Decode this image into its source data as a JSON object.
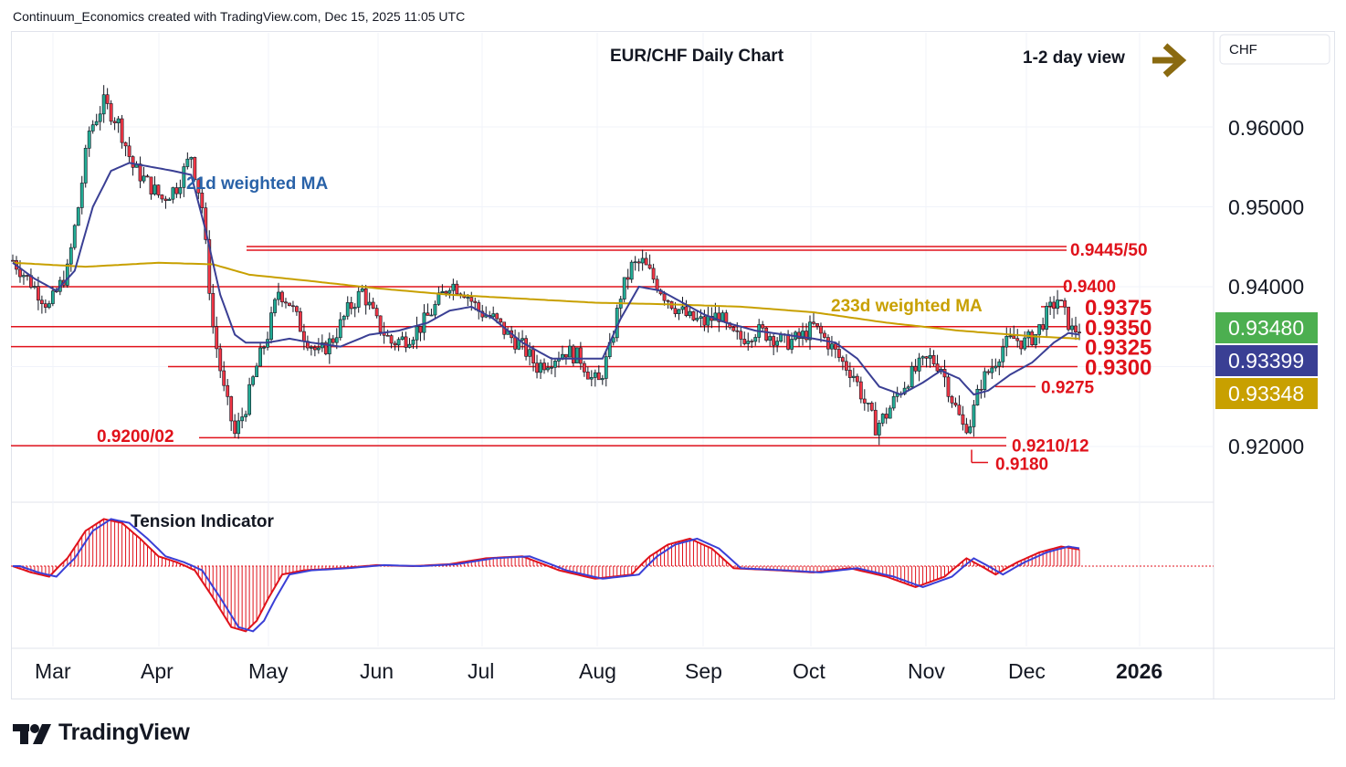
{
  "header": {
    "attribution": "Continuum_Economics created with TradingView.com, Dec 15, 2025 11:05 UTC"
  },
  "chart_data": {
    "type": "candlestick",
    "title": "EUR/CHF Daily Chart",
    "view": "1-2 day view",
    "currency": "CHF",
    "price_axis": {
      "ticks": [
        "0.96000",
        "0.95000",
        "0.94000",
        "0.92000"
      ],
      "range": [
        0.9145,
        0.9665
      ]
    },
    "time_axis": {
      "labels": [
        "Mar",
        "Apr",
        "May",
        "Jun",
        "Jul",
        "Aug",
        "Sep",
        "Oct",
        "Nov",
        "Dec",
        "2026"
      ]
    },
    "price_badges": [
      {
        "value": "0.93480",
        "color": "#4caf50",
        "desc": "last price"
      },
      {
        "value": "0.93399",
        "color": "#3a3f94",
        "desc": "21d weighted MA"
      },
      {
        "value": "0.93348",
        "color": "#c8a000",
        "desc": "233d weighted MA"
      }
    ],
    "levels": [
      {
        "label": "0.9445/50",
        "value": 0.9448
      },
      {
        "label": "0.9400",
        "value": 0.94
      },
      {
        "label": "0.9375",
        "value": 0.9375
      },
      {
        "label": "0.9350",
        "value": 0.935
      },
      {
        "label": "0.9325",
        "value": 0.9325
      },
      {
        "label": "0.9300",
        "value": 0.93
      },
      {
        "label": "0.9275",
        "value": 0.9275
      },
      {
        "label": "0.9210/12",
        "value": 0.9211
      },
      {
        "label": "0.9200/02",
        "value": 0.9201
      },
      {
        "label": "0.9180",
        "value": 0.918
      }
    ],
    "indicator_labels": {
      "ma21": "21d weighted MA",
      "ma233": "233d weighted MA",
      "tension": "Tension Indicator"
    },
    "colors": {
      "up": "#22ab94",
      "down": "#f23645",
      "ma21": "#3a3f94",
      "ma233": "#c8a000",
      "levels": "#e0121b",
      "arrow": "#8a6a10"
    },
    "price_path": [
      [
        0,
        0.9433
      ],
      [
        5,
        0.9405
      ],
      [
        10,
        0.9375
      ],
      [
        15,
        0.942
      ],
      [
        18,
        0.95
      ],
      [
        21,
        0.9595
      ],
      [
        25,
        0.963
      ],
      [
        29,
        0.9605
      ],
      [
        33,
        0.955
      ],
      [
        37,
        0.953
      ],
      [
        41,
        0.951
      ],
      [
        45,
        0.9525
      ],
      [
        49,
        0.9565
      ],
      [
        52,
        0.95
      ],
      [
        55,
        0.935
      ],
      [
        58,
        0.927
      ],
      [
        61,
        0.9215
      ],
      [
        64,
        0.925
      ],
      [
        67,
        0.93
      ],
      [
        70,
        0.934
      ],
      [
        73,
        0.9395
      ],
      [
        76,
        0.938
      ],
      [
        80,
        0.934
      ],
      [
        84,
        0.9315
      ],
      [
        88,
        0.9335
      ],
      [
        92,
        0.937
      ],
      [
        96,
        0.9395
      ],
      [
        100,
        0.9355
      ],
      [
        104,
        0.933
      ],
      [
        108,
        0.9335
      ],
      [
        112,
        0.935
      ],
      [
        116,
        0.9375
      ],
      [
        120,
        0.9405
      ],
      [
        124,
        0.9395
      ],
      [
        128,
        0.937
      ],
      [
        132,
        0.936
      ],
      [
        136,
        0.934
      ],
      [
        140,
        0.9325
      ],
      [
        144,
        0.93
      ],
      [
        148,
        0.931
      ],
      [
        152,
        0.932
      ],
      [
        156,
        0.931
      ],
      [
        159,
        0.9285
      ],
      [
        161,
        0.928
      ],
      [
        164,
        0.932
      ],
      [
        167,
        0.939
      ],
      [
        170,
        0.9425
      ],
      [
        173,
        0.943
      ],
      [
        176,
        0.941
      ],
      [
        179,
        0.939
      ],
      [
        182,
        0.9375
      ],
      [
        186,
        0.936
      ],
      [
        190,
        0.9355
      ],
      [
        194,
        0.9365
      ],
      [
        197,
        0.934
      ],
      [
        200,
        0.9335
      ],
      [
        204,
        0.9345
      ],
      [
        208,
        0.934
      ],
      [
        212,
        0.933
      ],
      [
        216,
        0.9335
      ],
      [
        220,
        0.935
      ],
      [
        224,
        0.933
      ],
      [
        228,
        0.9305
      ],
      [
        231,
        0.929
      ],
      [
        234,
        0.9255
      ],
      [
        237,
        0.9225
      ],
      [
        240,
        0.924
      ],
      [
        243,
        0.9265
      ],
      [
        246,
        0.9285
      ],
      [
        249,
        0.93
      ],
      [
        252,
        0.931
      ],
      [
        255,
        0.93
      ],
      [
        258,
        0.926
      ],
      [
        261,
        0.9225
      ],
      [
        263,
        0.923
      ],
      [
        266,
        0.928
      ],
      [
        269,
        0.93
      ],
      [
        272,
        0.9325
      ],
      [
        275,
        0.9335
      ],
      [
        278,
        0.933
      ],
      [
        281,
        0.934
      ],
      [
        284,
        0.9365
      ],
      [
        287,
        0.9385
      ],
      [
        289,
        0.9365
      ],
      [
        291,
        0.9345
      ],
      [
        293,
        0.9348
      ]
    ],
    "ma21_path": [
      [
        0,
        0.943
      ],
      [
        6,
        0.941
      ],
      [
        12,
        0.9395
      ],
      [
        17,
        0.942
      ],
      [
        22,
        0.95
      ],
      [
        27,
        0.9545
      ],
      [
        32,
        0.9555
      ],
      [
        38,
        0.955
      ],
      [
        44,
        0.9545
      ],
      [
        49,
        0.954
      ],
      [
        53,
        0.947
      ],
      [
        57,
        0.939
      ],
      [
        61,
        0.934
      ],
      [
        64,
        0.933
      ],
      [
        70,
        0.933
      ],
      [
        76,
        0.9335
      ],
      [
        82,
        0.933
      ],
      [
        90,
        0.9325
      ],
      [
        98,
        0.934
      ],
      [
        106,
        0.9345
      ],
      [
        114,
        0.9355
      ],
      [
        120,
        0.937
      ],
      [
        126,
        0.9375
      ],
      [
        132,
        0.936
      ],
      [
        140,
        0.933
      ],
      [
        148,
        0.931
      ],
      [
        156,
        0.931
      ],
      [
        162,
        0.931
      ],
      [
        167,
        0.936
      ],
      [
        172,
        0.94
      ],
      [
        178,
        0.9395
      ],
      [
        184,
        0.938
      ],
      [
        190,
        0.9365
      ],
      [
        196,
        0.9355
      ],
      [
        204,
        0.9345
      ],
      [
        212,
        0.934
      ],
      [
        220,
        0.9335
      ],
      [
        226,
        0.933
      ],
      [
        232,
        0.931
      ],
      [
        238,
        0.9275
      ],
      [
        244,
        0.9265
      ],
      [
        250,
        0.928
      ],
      [
        255,
        0.9295
      ],
      [
        260,
        0.9285
      ],
      [
        264,
        0.9265
      ],
      [
        268,
        0.927
      ],
      [
        274,
        0.929
      ],
      [
        280,
        0.9305
      ],
      [
        286,
        0.933
      ],
      [
        290,
        0.9342
      ],
      [
        293,
        0.934
      ]
    ],
    "ma233_path": [
      [
        0,
        0.943
      ],
      [
        20,
        0.9425
      ],
      [
        40,
        0.943
      ],
      [
        55,
        0.9428
      ],
      [
        65,
        0.9415
      ],
      [
        80,
        0.9408
      ],
      [
        100,
        0.9398
      ],
      [
        120,
        0.939
      ],
      [
        140,
        0.9385
      ],
      [
        160,
        0.938
      ],
      [
        180,
        0.9378
      ],
      [
        200,
        0.9375
      ],
      [
        220,
        0.9368
      ],
      [
        240,
        0.9355
      ],
      [
        260,
        0.9345
      ],
      [
        280,
        0.9338
      ],
      [
        293,
        0.9335
      ]
    ],
    "tension_path": [
      [
        0,
        0.0
      ],
      [
        5,
        -0.3
      ],
      [
        10,
        -0.5
      ],
      [
        15,
        0.4
      ],
      [
        20,
        1.8
      ],
      [
        25,
        2.4
      ],
      [
        30,
        2.2
      ],
      [
        35,
        1.4
      ],
      [
        40,
        0.5
      ],
      [
        45,
        0.2
      ],
      [
        50,
        -0.2
      ],
      [
        55,
        -1.5
      ],
      [
        60,
        -2.9
      ],
      [
        64,
        -3.1
      ],
      [
        67,
        -2.6
      ],
      [
        70,
        -1.6
      ],
      [
        74,
        -0.4
      ],
      [
        80,
        -0.2
      ],
      [
        90,
        -0.1
      ],
      [
        100,
        0.05
      ],
      [
        110,
        0.0
      ],
      [
        120,
        0.1
      ],
      [
        130,
        0.4
      ],
      [
        140,
        0.5
      ],
      [
        150,
        -0.2
      ],
      [
        160,
        -0.6
      ],
      [
        170,
        -0.4
      ],
      [
        175,
        0.5
      ],
      [
        180,
        1.1
      ],
      [
        186,
        1.4
      ],
      [
        192,
        0.9
      ],
      [
        198,
        -0.1
      ],
      [
        210,
        -0.2
      ],
      [
        220,
        -0.3
      ],
      [
        230,
        -0.1
      ],
      [
        240,
        -0.5
      ],
      [
        248,
        -1.0
      ],
      [
        256,
        -0.5
      ],
      [
        262,
        0.4
      ],
      [
        266,
        0.0
      ],
      [
        270,
        -0.4
      ],
      [
        276,
        0.2
      ],
      [
        282,
        0.7
      ],
      [
        288,
        1.0
      ],
      [
        293,
        0.85
      ]
    ],
    "tension_range": [
      -3.3,
      2.7
    ]
  }
}
